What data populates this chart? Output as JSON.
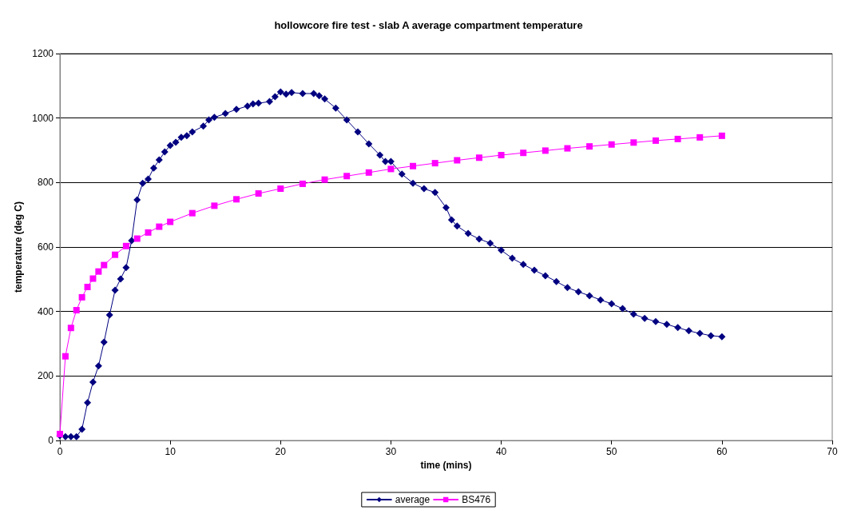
{
  "chart_data": {
    "type": "line",
    "title": "hollowcore fire test - slab A average compartment temperature",
    "xlabel": "time (mins)",
    "ylabel": "temperature (deg C)",
    "xlim": [
      0,
      70
    ],
    "xticks": [
      0,
      10,
      20,
      30,
      40,
      50,
      60,
      70
    ],
    "ylim": [
      0,
      1200
    ],
    "yticks": [
      0,
      200,
      400,
      600,
      800,
      1000,
      1200
    ],
    "grid": "y",
    "legend": "bottom",
    "line_style": "solid",
    "series": [
      {
        "name": "average",
        "color": "#000080",
        "marker": "diamond",
        "x": [
          0,
          0.5,
          1,
          1.5,
          2,
          2.5,
          3,
          3.5,
          4,
          4.5,
          5,
          5.5,
          6,
          6.5,
          7,
          7.5,
          8,
          8.5,
          9,
          9.5,
          10,
          10.5,
          11,
          11.5,
          12,
          13,
          13.5,
          14,
          15,
          16,
          17,
          17.5,
          18,
          19,
          19.5,
          20,
          20.5,
          21,
          22,
          23,
          23.5,
          24,
          25,
          26,
          27,
          28,
          29,
          29.5,
          30,
          31,
          32,
          33,
          34,
          35,
          35.5,
          36,
          37,
          38,
          39,
          40,
          41,
          42,
          43,
          44,
          45,
          46,
          47,
          48,
          49,
          50,
          51,
          52,
          53,
          54,
          55,
          56,
          57,
          58,
          59,
          60
        ],
        "values": [
          15,
          12,
          12,
          12,
          35,
          117,
          181,
          231,
          305,
          389,
          466,
          501,
          536,
          620,
          746,
          798,
          811,
          845,
          870,
          895,
          915,
          925,
          940,
          945,
          957,
          975,
          994,
          1002,
          1014,
          1027,
          1037,
          1044,
          1046,
          1051,
          1066,
          1081,
          1074,
          1079,
          1076,
          1076,
          1069,
          1059,
          1031,
          994,
          957,
          920,
          885,
          865,
          865,
          826,
          798,
          781,
          769,
          722,
          684,
          665,
          642,
          625,
          612,
          590,
          565,
          546,
          528,
          511,
          493,
          474,
          461,
          449,
          436,
          424,
          409,
          392,
          379,
          369,
          360,
          350,
          340,
          332,
          325,
          322
        ]
      },
      {
        "name": "BS476",
        "color": "#ff00ff",
        "marker": "square",
        "x": [
          0,
          0.5,
          1,
          1.5,
          2,
          2.5,
          3,
          3.5,
          4,
          5,
          6,
          7,
          8,
          9,
          10,
          12,
          14,
          16,
          18,
          20,
          22,
          24,
          26,
          28,
          30,
          32,
          34,
          36,
          38,
          40,
          42,
          44,
          46,
          48,
          50,
          52,
          54,
          56,
          58,
          60
        ],
        "values": [
          20,
          261,
          349,
          404,
          444,
          476,
          502,
          524,
          544,
          576,
          603,
          626,
          645,
          663,
          678,
          705,
          728,
          748,
          766,
          781,
          796,
          809,
          820,
          831,
          842,
          851,
          860,
          869,
          877,
          885,
          892,
          899,
          906,
          912,
          918,
          924,
          930,
          935,
          940,
          945
        ]
      }
    ]
  }
}
